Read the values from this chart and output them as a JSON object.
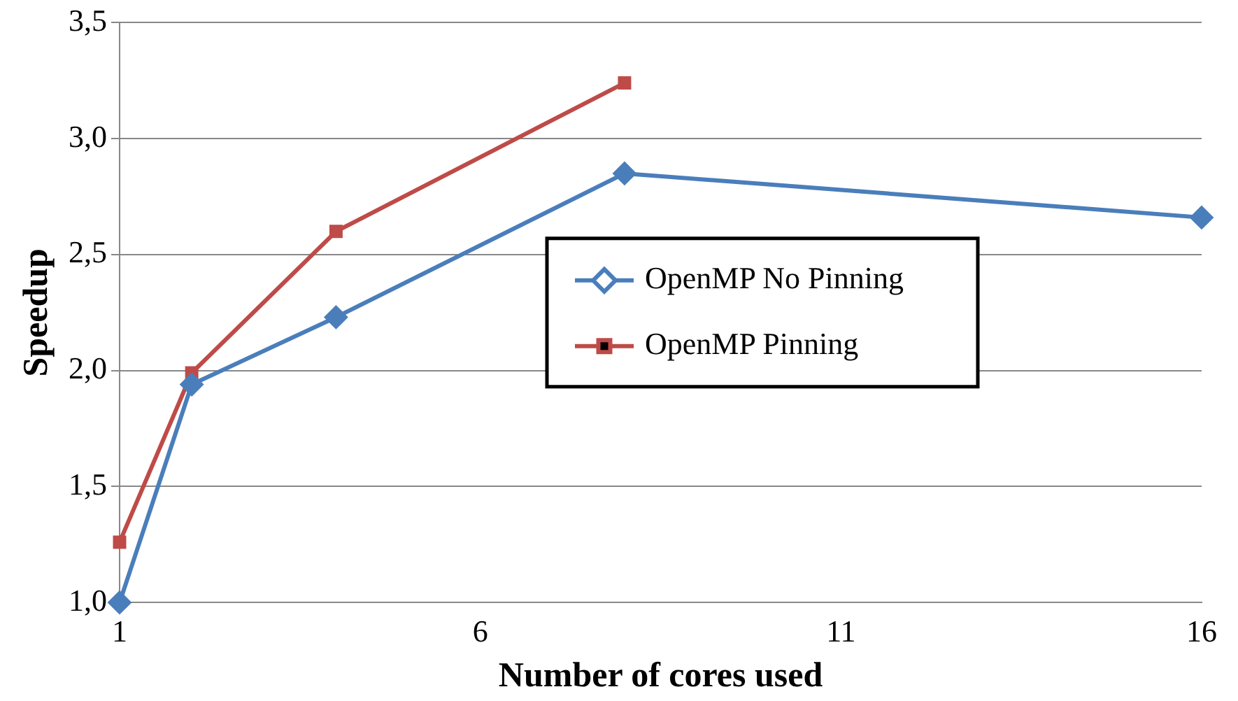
{
  "chart_data": {
    "type": "line",
    "xlabel": "Number of cores used",
    "ylabel": "Speedup",
    "xlim": [
      1,
      16
    ],
    "xticks": [
      1,
      6,
      11,
      16
    ],
    "ylim": [
      1,
      3.5
    ],
    "yticks": [
      {
        "value": 1,
        "label": "1,0"
      },
      {
        "value": 1.5,
        "label": "1,5"
      },
      {
        "value": 2,
        "label": "2,0"
      },
      {
        "value": 2.5,
        "label": "2,5"
      },
      {
        "value": 3,
        "label": "3,0"
      },
      {
        "value": 3.5,
        "label": "3,5"
      }
    ],
    "grid": "y",
    "legend": "center right",
    "series": [
      {
        "name": "OpenMP No Pinning",
        "color": "#4a7ebb",
        "marker": "diamond",
        "x": [
          1,
          2,
          4,
          8,
          16
        ],
        "values": [
          1.0,
          1.94,
          2.23,
          2.85,
          2.66
        ]
      },
      {
        "name": "OpenMP Pinning",
        "color": "#be4b48",
        "marker": "square",
        "x": [
          1,
          2,
          4,
          8
        ],
        "values": [
          1.26,
          1.99,
          2.6,
          3.24
        ]
      }
    ]
  }
}
